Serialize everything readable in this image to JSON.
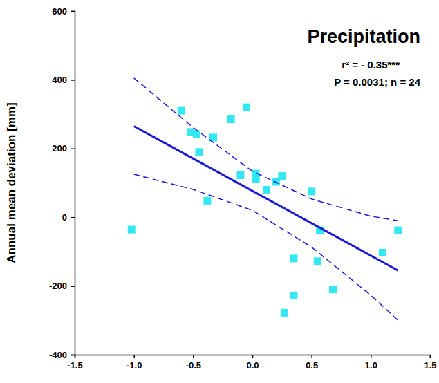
{
  "chart_data": {
    "type": "scatter",
    "title": "Precipitation",
    "annotations": [
      "r² = - 0.35***",
      "P = 0.0031; n = 24"
    ],
    "ylabel": "Annual mean deviation [mm]",
    "xlim": [
      -1.5,
      1.5
    ],
    "xticks": [
      -1.5,
      {
        "value": -1.0,
        "label": "-1.0"
      },
      -0.5,
      {
        "value": 0.0,
        "label": "0.0"
      },
      0.5,
      {
        "value": 1.0,
        "label": "1.0"
      },
      1.5
    ],
    "ylim": [
      -400,
      600
    ],
    "yticks": [
      -400,
      -200,
      0,
      200,
      400,
      600
    ],
    "series": [
      {
        "type": "scatter",
        "marker": "square",
        "color": "#33e8f2",
        "x": [
          -0.6,
          -0.52,
          -0.47,
          -0.45,
          -0.33,
          -0.38,
          -0.18,
          -0.05,
          -0.1,
          0.03,
          0.03,
          0.12,
          0.2,
          0.25,
          0.5,
          0.57,
          0.55,
          0.35,
          0.35,
          0.27,
          0.68,
          1.1,
          1.23,
          -1.02
        ],
        "values": [
          310,
          248,
          242,
          190,
          232,
          48,
          285,
          320,
          122,
          127,
          112,
          80,
          103,
          120,
          75,
          -38,
          -128,
          -120,
          -228,
          -278,
          -210,
          -103,
          -38,
          -36
        ]
      },
      {
        "type": "line",
        "line_style": "solid",
        "color": "#1a1ad6",
        "x": [
          -1.0,
          1.23
        ],
        "values": [
          265,
          -155
        ]
      },
      {
        "type": "line",
        "line_style": "dashed",
        "color": "#1a1ad6",
        "x": [
          -1.0,
          -0.5,
          0.0,
          0.5,
          1.0,
          1.23
        ],
        "values": [
          405,
          261,
          134,
          53,
          3,
          -10
        ]
      },
      {
        "type": "line",
        "line_style": "dashed",
        "color": "#1a1ad6",
        "x": [
          -1.0,
          -0.5,
          0.0,
          0.5,
          1.0,
          1.23
        ],
        "values": [
          125,
          81,
          20,
          -87,
          -227,
          -300
        ]
      }
    ]
  }
}
